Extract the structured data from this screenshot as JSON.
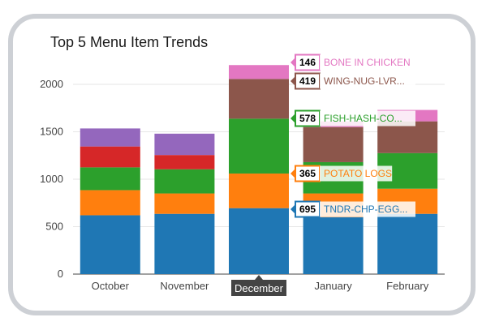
{
  "title": "Top 5 Menu Item Trends",
  "chart_data": {
    "type": "bar",
    "stacked": true,
    "title": "Top 5 Menu Item Trends",
    "categories": [
      "October",
      "November",
      "December",
      "January",
      "February"
    ],
    "ylim": [
      0,
      2200
    ],
    "yticks": [
      0,
      500,
      1000,
      1500,
      2000
    ],
    "grid": true,
    "highlight_category": "December",
    "series": [
      {
        "name": "TNDR-CHP-EGG...",
        "color": "#1f77b4",
        "values": [
          620,
          635,
          695,
          600,
          635
        ]
      },
      {
        "name": "POTATO LOGS",
        "color": "#ff7f0e",
        "values": [
          265,
          215,
          365,
          250,
          265
        ]
      },
      {
        "name": "FISH-HASH-CO...",
        "color": "#2ca02c",
        "values": [
          240,
          255,
          578,
          330,
          375
        ]
      },
      {
        "name": "WING-NUG-LVR...",
        "color": "#8c564b",
        "values": [
          0,
          0,
          419,
          370,
          335
        ]
      },
      {
        "name": "BONE IN CHICKEN",
        "color": "#e377c2",
        "values": [
          0,
          0,
          146,
          60,
          120
        ]
      },
      {
        "name": "",
        "color": "#d62728",
        "values": [
          220,
          150,
          0,
          0,
          0
        ]
      },
      {
        "name": "",
        "color": "#9467bd",
        "values": [
          190,
          225,
          0,
          0,
          0
        ]
      }
    ],
    "hover_labels": [
      {
        "value": "146",
        "name": "BONE IN CHICKEN",
        "color": "#e377c2",
        "series": 4
      },
      {
        "value": "419",
        "name": "WING-NUG-LVR...",
        "color": "#8c564b",
        "series": 3
      },
      {
        "value": "578",
        "name": "FISH-HASH-CO...",
        "color": "#2ca02c",
        "series": 2
      },
      {
        "value": "365",
        "name": "POTATO LOGS",
        "color": "#ff7f0e",
        "series": 1
      },
      {
        "value": "695",
        "name": "TNDR-CHP-EGG...",
        "color": "#1f77b4",
        "series": 0
      }
    ]
  }
}
